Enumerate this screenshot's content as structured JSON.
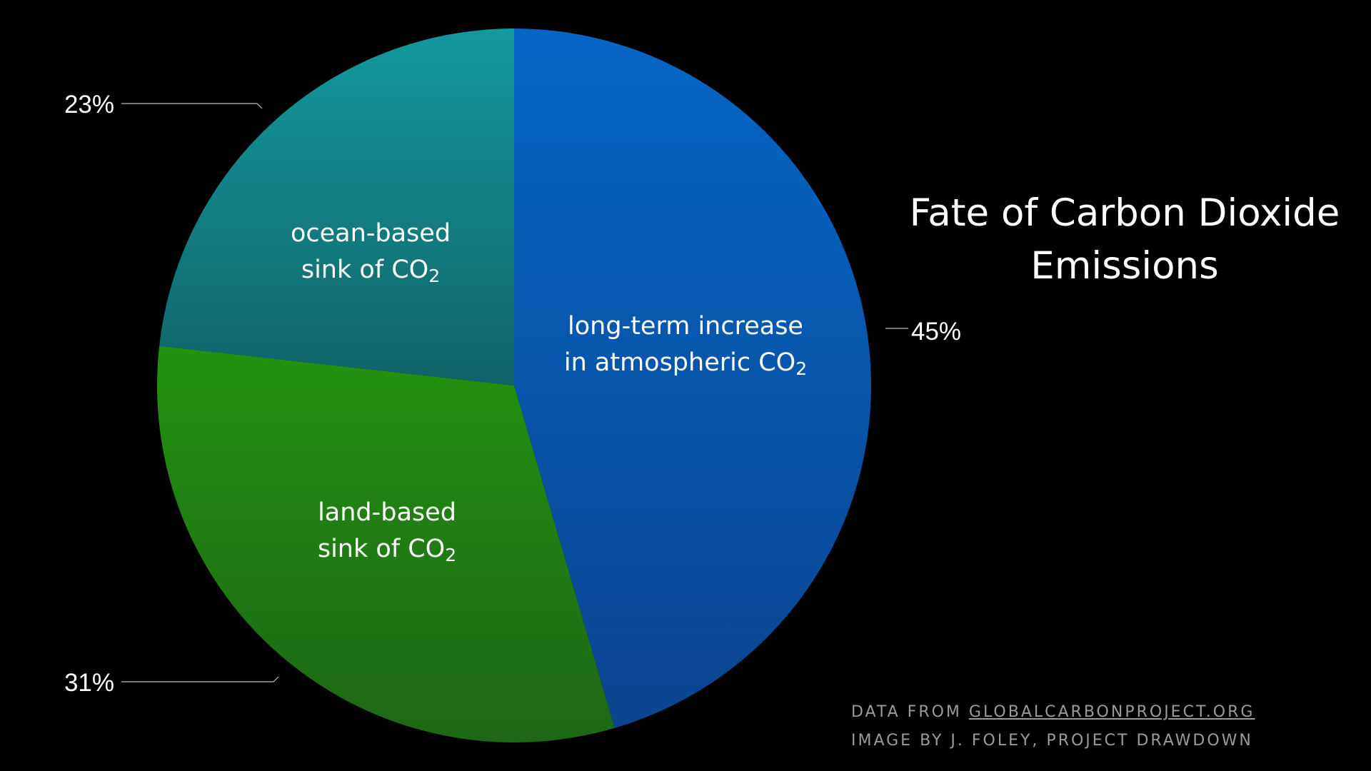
{
  "chart_data": {
    "type": "pie",
    "title": "Fate of Carbon Dioxide Emissions",
    "start_angle": "12 o'clock",
    "direction": "clockwise",
    "slices": [
      {
        "label_line1": "long-term increase",
        "label_line2": "in atmospheric CO",
        "label_sub": "2",
        "value": 45,
        "value_label": "45%",
        "color_top": "#0666c6",
        "color_bottom": "#0a4590"
      },
      {
        "label_line1": "land-based",
        "label_line2": "sink of CO",
        "label_sub": "2",
        "value": 31,
        "value_label": "31%",
        "color_top": "#22920f",
        "color_bottom": "#1d6716"
      },
      {
        "label_line1": "ocean-based",
        "label_line2": "sink of CO",
        "label_sub": "2",
        "value": 23,
        "value_label": "23%",
        "color_top": "#13999e",
        "color_bottom": "#116469"
      }
    ]
  },
  "credits": {
    "line1_prefix": "DATA FROM ",
    "line1_link": "GLOBALCARBONPROJECT.ORG",
    "line2": "IMAGE BY J. FOLEY, PROJECT DRAWDOWN"
  }
}
